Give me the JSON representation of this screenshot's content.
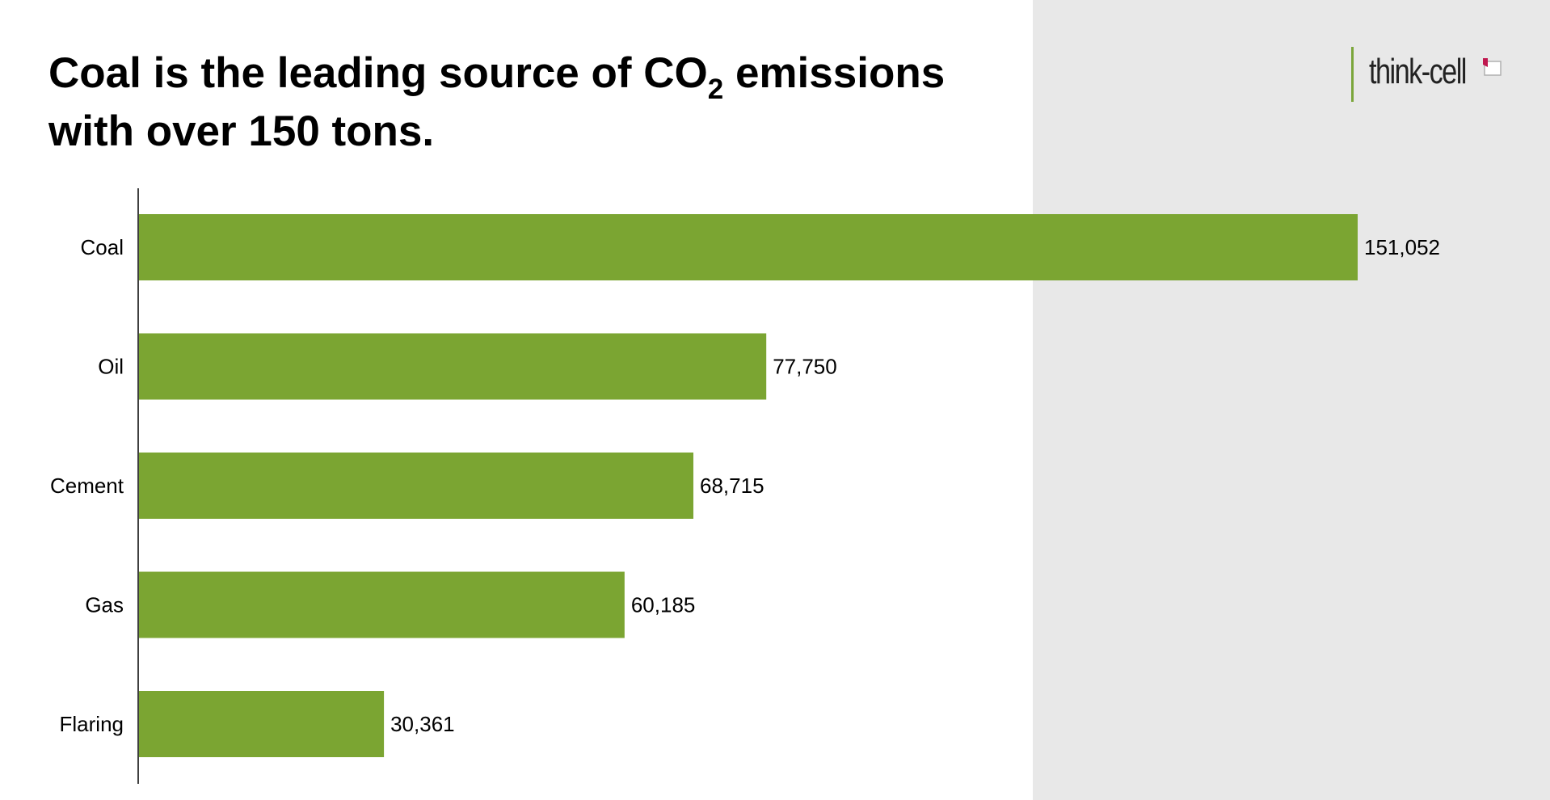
{
  "header": {
    "title_part1": "Coal is the leading source of CO",
    "title_sub": "2",
    "title_part2": " emissions with over 150 tons.",
    "logo_text": "think-cell",
    "logo_accent_color": "#7ba63b",
    "logo_mark_color": "#c0184f"
  },
  "chart_data": {
    "type": "bar",
    "orientation": "horizontal",
    "categories": [
      "Coal",
      "Oil",
      "Cement",
      "Gas",
      "Flaring"
    ],
    "values": [
      151052,
      77750,
      68715,
      60185,
      30361
    ],
    "value_labels": [
      "151,052",
      "77,750",
      "68,715",
      "60,185",
      "30,361"
    ],
    "bar_color": "#7ba532",
    "grid": false,
    "legend": "none"
  }
}
